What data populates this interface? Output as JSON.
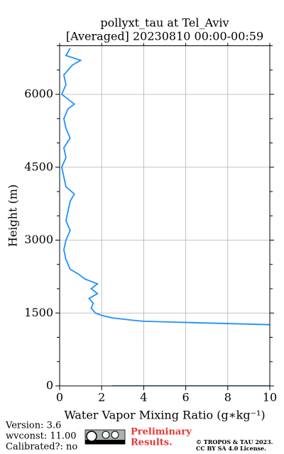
{
  "chart_data": {
    "type": "line",
    "title": "pollyxt_tau at Tel_Aviv",
    "subtitle": "[Averaged] 20230810 00:00-00:59",
    "xlabel": "Water Vapor Mixing Ratio (g∗kg⁻¹)",
    "ylabel": "Height (m)",
    "xlim": [
      0,
      10
    ],
    "xticks": [
      0,
      2,
      4,
      6,
      8,
      10
    ],
    "ylim": [
      0,
      7000
    ],
    "yticks": [
      0,
      1500,
      3000,
      4500,
      6000
    ],
    "y_minor_ticks": [
      500,
      1000,
      2000,
      2500,
      3500,
      4000,
      5000,
      5500,
      6500,
      7000
    ],
    "grid": true,
    "series": [
      {
        "color": "#1e90ff",
        "heights": [
          0,
          0,
          null,
          1260,
          1300,
          1330,
          1350,
          1400,
          1450,
          1500,
          1600,
          1700,
          1800,
          1900,
          2000,
          2100,
          2200,
          2300,
          2400,
          2500,
          2600,
          2800,
          3000,
          3200,
          3400,
          3600,
          3800,
          3950,
          4100,
          4300,
          4500,
          4700,
          4900,
          5100,
          5300,
          5500,
          5700,
          5800,
          6000,
          6200,
          6400,
          6600,
          6700,
          6800,
          6950
        ],
        "values": [
          2.5,
          10,
          null,
          10.0,
          6.5,
          4.0,
          3.5,
          2.5,
          2.0,
          1.7,
          1.5,
          1.6,
          1.4,
          1.8,
          1.5,
          1.8,
          1.2,
          0.9,
          0.5,
          0.4,
          0.3,
          0.2,
          0.3,
          0.5,
          0.3,
          0.4,
          0.5,
          0.7,
          0.3,
          0.2,
          0.1,
          0.3,
          0.2,
          0.5,
          0.3,
          0.2,
          0.4,
          0.7,
          0.1,
          0.3,
          0.2,
          0.6,
          1.0,
          0.3,
          0.5
        ]
      }
    ]
  },
  "footer": {
    "version": "Version: 3.6",
    "wvconst": "wvconst:  11.00",
    "calibrated": "Calibrated?: no",
    "preliminary": "Preliminary",
    "results": "Results.",
    "copyright": "© TROPOS & TAU 2023.",
    "license": "CC BY SA 4.0 License."
  }
}
